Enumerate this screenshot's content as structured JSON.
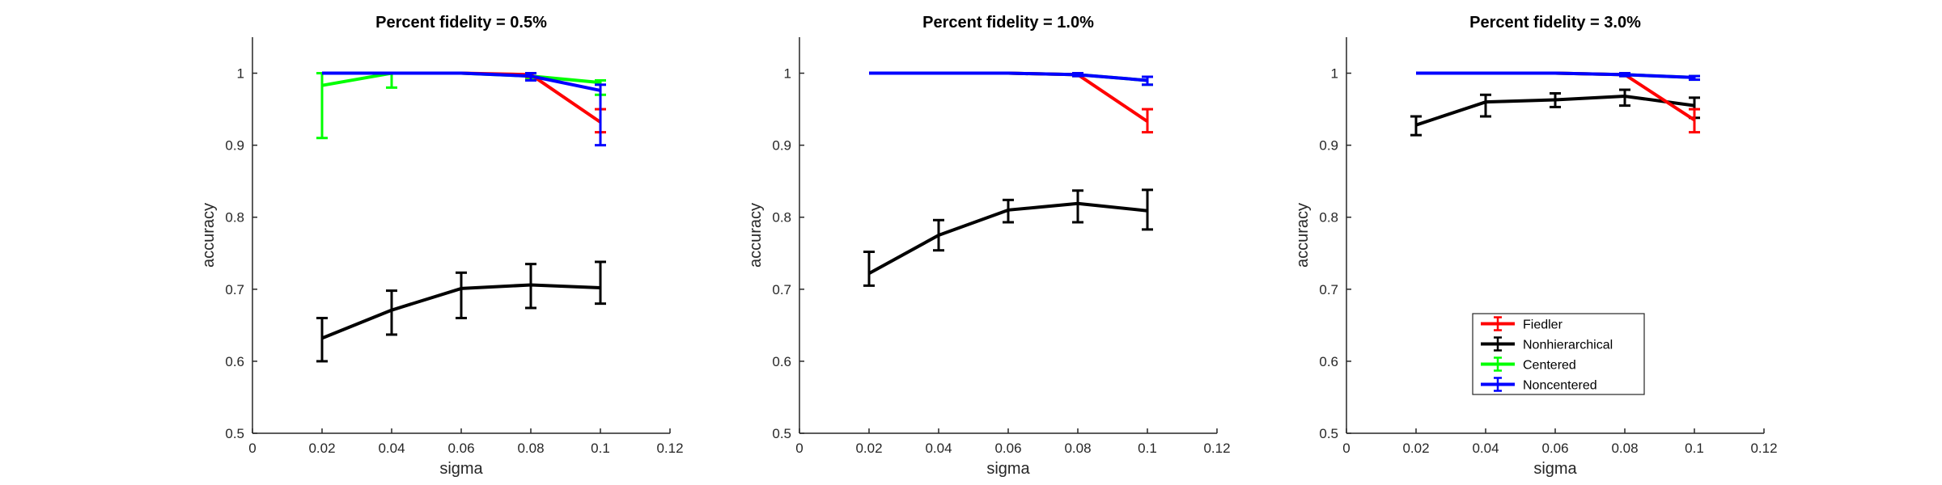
{
  "chart_data": [
    {
      "type": "line",
      "title": "Percent fidelity = 0.5%",
      "xlabel": "sigma",
      "ylabel": "accuracy",
      "xlim": [
        0,
        0.12
      ],
      "ylim": [
        0.5,
        1.05
      ],
      "xticks": [
        0,
        0.02,
        0.04,
        0.06,
        0.08,
        0.1,
        0.12
      ],
      "xticklabels": [
        "0",
        "0.02",
        "0.04",
        "0.06",
        "0.08",
        "0.1",
        "0.12"
      ],
      "yticks": [
        0.5,
        0.6,
        0.7,
        0.8,
        0.9,
        1
      ],
      "yticklabels": [
        "0.5",
        "0.6",
        "0.7",
        "0.8",
        "0.9",
        "1"
      ],
      "error_bars": true,
      "series": [
        {
          "name": "Fiedler",
          "color": "#ff0000",
          "x": [
            0.02,
            0.04,
            0.06,
            0.08,
            0.1
          ],
          "y": [
            1.0,
            1.0,
            1.0,
            0.998,
            0.932
          ],
          "lower": [
            1.0,
            1.0,
            1.0,
            0.995,
            0.918
          ],
          "upper": [
            1.0,
            1.0,
            1.0,
            1.0,
            0.95
          ]
        },
        {
          "name": "Nonhierarchical",
          "color": "#000000",
          "x": [
            0.02,
            0.04,
            0.06,
            0.08,
            0.1
          ],
          "y": [
            0.632,
            0.671,
            0.701,
            0.706,
            0.702
          ],
          "lower": [
            0.6,
            0.637,
            0.66,
            0.674,
            0.68
          ],
          "upper": [
            0.66,
            0.698,
            0.723,
            0.735,
            0.738
          ]
        },
        {
          "name": "Centered",
          "color": "#00ff00",
          "x": [
            0.02,
            0.04,
            0.06,
            0.08,
            0.1
          ],
          "y": [
            0.983,
            1.0,
            1.0,
            0.996,
            0.987
          ],
          "lower": [
            0.91,
            0.98,
            1.0,
            0.993,
            0.97
          ],
          "upper": [
            1.0,
            1.0,
            1.0,
            1.0,
            0.99
          ]
        },
        {
          "name": "Noncentered",
          "color": "#0000ff",
          "x": [
            0.02,
            0.04,
            0.06,
            0.08,
            0.1
          ],
          "y": [
            1.0,
            1.0,
            1.0,
            0.996,
            0.976
          ],
          "lower": [
            1.0,
            1.0,
            1.0,
            0.99,
            0.9
          ],
          "upper": [
            1.0,
            1.0,
            1.0,
            1.0,
            0.984
          ]
        }
      ]
    },
    {
      "type": "line",
      "title": "Percent fidelity = 1.0%",
      "xlabel": "sigma",
      "ylabel": "accuracy",
      "xlim": [
        0,
        0.12
      ],
      "ylim": [
        0.5,
        1.05
      ],
      "xticks": [
        0,
        0.02,
        0.04,
        0.06,
        0.08,
        0.1,
        0.12
      ],
      "xticklabels": [
        "0",
        "0.02",
        "0.04",
        "0.06",
        "0.08",
        "0.1",
        "0.12"
      ],
      "yticks": [
        0.5,
        0.6,
        0.7,
        0.8,
        0.9,
        1
      ],
      "yticklabels": [
        "0.5",
        "0.6",
        "0.7",
        "0.8",
        "0.9",
        "1"
      ],
      "error_bars": true,
      "series": [
        {
          "name": "Fiedler",
          "color": "#ff0000",
          "x": [
            0.02,
            0.04,
            0.06,
            0.08,
            0.1
          ],
          "y": [
            1.0,
            1.0,
            1.0,
            0.998,
            0.933
          ],
          "lower": [
            1.0,
            1.0,
            1.0,
            0.996,
            0.918
          ],
          "upper": [
            1.0,
            1.0,
            1.0,
            1.0,
            0.95
          ]
        },
        {
          "name": "Nonhierarchical",
          "color": "#000000",
          "x": [
            0.02,
            0.04,
            0.06,
            0.08,
            0.1
          ],
          "y": [
            0.722,
            0.775,
            0.81,
            0.819,
            0.809
          ],
          "lower": [
            0.705,
            0.754,
            0.793,
            0.793,
            0.783
          ],
          "upper": [
            0.752,
            0.796,
            0.824,
            0.837,
            0.838
          ]
        },
        {
          "name": "Centered",
          "color": "#00ff00",
          "x": [
            0.02,
            0.04,
            0.06,
            0.08,
            0.1
          ],
          "y": [
            1.0,
            1.0,
            1.0,
            0.998,
            0.99
          ],
          "lower": [
            1.0,
            1.0,
            1.0,
            0.996,
            0.984
          ],
          "upper": [
            1.0,
            1.0,
            1.0,
            1.0,
            0.995
          ]
        },
        {
          "name": "Noncentered",
          "color": "#0000ff",
          "x": [
            0.02,
            0.04,
            0.06,
            0.08,
            0.1
          ],
          "y": [
            1.0,
            1.0,
            1.0,
            0.998,
            0.99
          ],
          "lower": [
            1.0,
            1.0,
            1.0,
            0.996,
            0.984
          ],
          "upper": [
            1.0,
            1.0,
            1.0,
            1.0,
            0.995
          ]
        }
      ]
    },
    {
      "type": "line",
      "title": "Percent fidelity = 3.0%",
      "xlabel": "sigma",
      "ylabel": "accuracy",
      "xlim": [
        0,
        0.12
      ],
      "ylim": [
        0.5,
        1.05
      ],
      "xticks": [
        0,
        0.02,
        0.04,
        0.06,
        0.08,
        0.1,
        0.12
      ],
      "xticklabels": [
        "0",
        "0.02",
        "0.04",
        "0.06",
        "0.08",
        "0.1",
        "0.12"
      ],
      "yticks": [
        0.5,
        0.6,
        0.7,
        0.8,
        0.9,
        1
      ],
      "yticklabels": [
        "0.5",
        "0.6",
        "0.7",
        "0.8",
        "0.9",
        "1"
      ],
      "error_bars": true,
      "legend": {
        "placement": "inside-lower-right",
        "entries": [
          "Fiedler",
          "Nonhierarchical",
          "Centered",
          "Noncentered"
        ]
      },
      "series": [
        {
          "name": "Fiedler",
          "color": "#ff0000",
          "x": [
            0.02,
            0.04,
            0.06,
            0.08,
            0.1
          ],
          "y": [
            1.0,
            1.0,
            1.0,
            0.998,
            0.935
          ],
          "lower": [
            1.0,
            1.0,
            1.0,
            0.996,
            0.918
          ],
          "upper": [
            1.0,
            1.0,
            1.0,
            1.0,
            0.95
          ]
        },
        {
          "name": "Nonhierarchical",
          "color": "#000000",
          "x": [
            0.02,
            0.04,
            0.06,
            0.08,
            0.1
          ],
          "y": [
            0.928,
            0.96,
            0.963,
            0.968,
            0.955
          ],
          "lower": [
            0.914,
            0.94,
            0.953,
            0.955,
            0.938
          ],
          "upper": [
            0.94,
            0.97,
            0.972,
            0.977,
            0.966
          ]
        },
        {
          "name": "Centered",
          "color": "#00ff00",
          "x": [
            0.02,
            0.04,
            0.06,
            0.08,
            0.1
          ],
          "y": [
            1.0,
            1.0,
            1.0,
            0.998,
            0.994
          ],
          "lower": [
            1.0,
            1.0,
            1.0,
            0.996,
            0.991
          ],
          "upper": [
            1.0,
            1.0,
            1.0,
            1.0,
            0.996
          ]
        },
        {
          "name": "Noncentered",
          "color": "#0000ff",
          "x": [
            0.02,
            0.04,
            0.06,
            0.08,
            0.1
          ],
          "y": [
            1.0,
            1.0,
            1.0,
            0.998,
            0.994
          ],
          "lower": [
            1.0,
            1.0,
            1.0,
            0.996,
            0.991
          ],
          "upper": [
            1.0,
            1.0,
            1.0,
            1.0,
            0.996
          ]
        }
      ]
    }
  ]
}
